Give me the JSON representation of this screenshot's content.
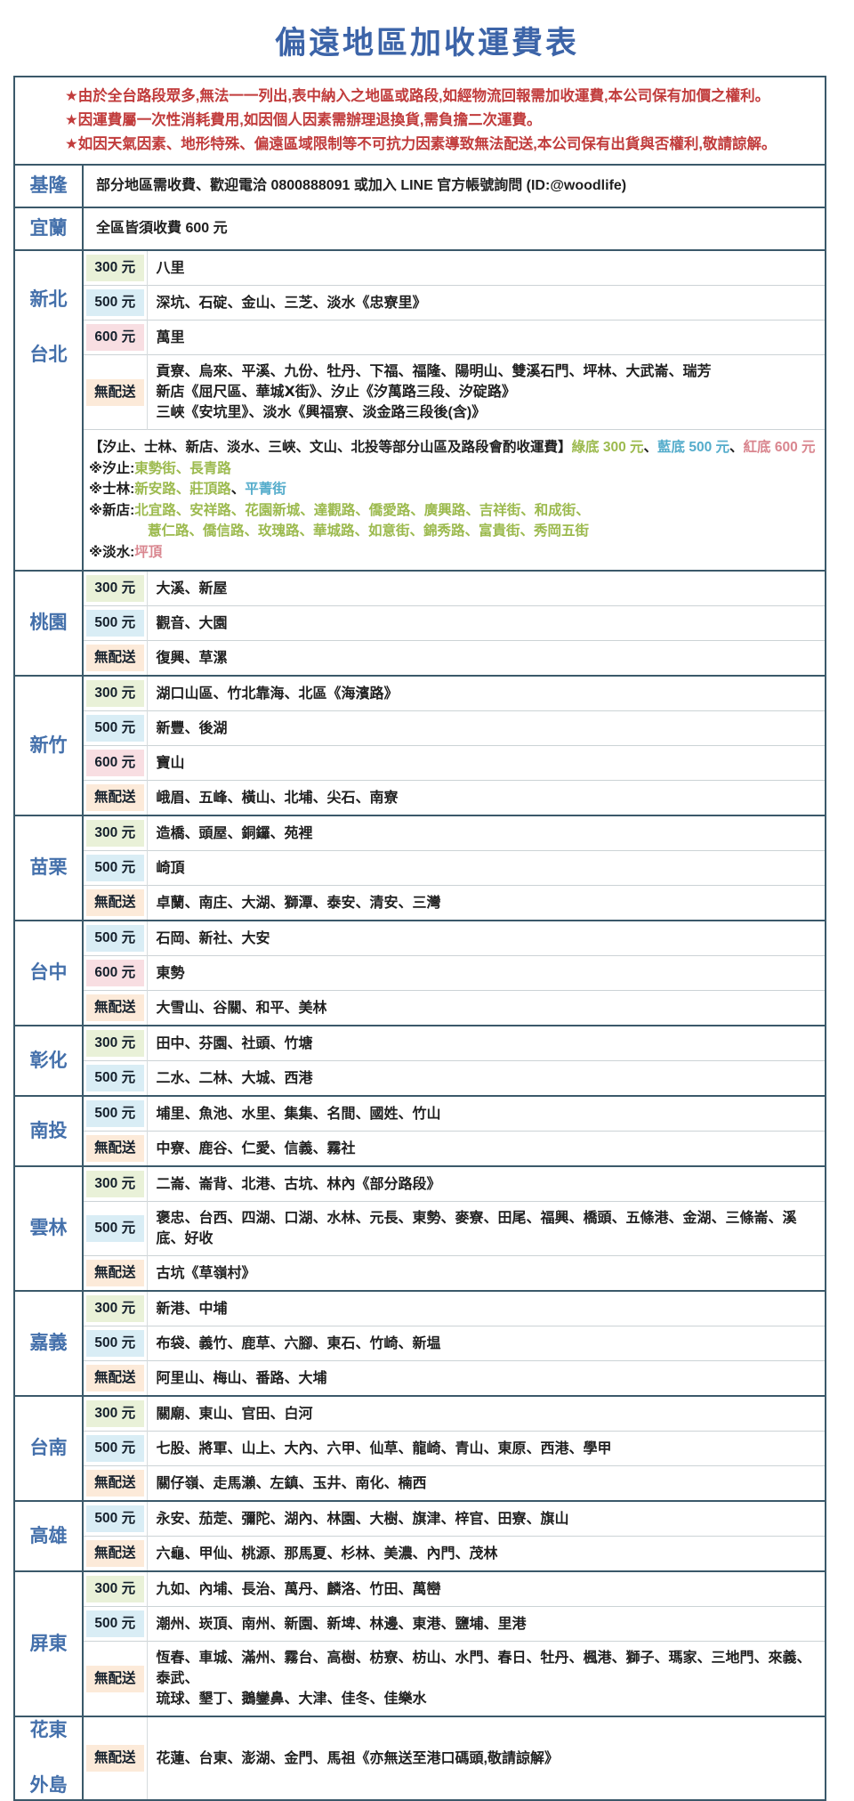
{
  "title": "偏遠地區加收運費表",
  "notes": [
    "★由於全台路段眾多,無法一一列出,表中納入之地區或路段,如經物流回報需加收運費,本公司保有加價之權利。",
    "★因運費屬一次性消耗費用,如因個人因素需辦理退換貨,需負擔二次運費。",
    "★如因天氣因素、地形特殊、偏遠區域限制等不可抗力因素導致無法配送,本公司保有出貨與否權利,敬請諒解。"
  ],
  "colors": {
    "title_blue": "#3c64a8",
    "region_blue": "#4470ab",
    "note_red": "#c13c3c",
    "table_border": "#3b596a",
    "tiers": {
      "300": "#e9f1d8",
      "500": "#d9edf5",
      "600": "#f8dee2",
      "none": "#fcead9"
    },
    "text": {
      "dark": "#1f1f1f",
      "green": "#9cba4e",
      "blue": "#54accb",
      "red": "#d9868f"
    }
  },
  "sections": [
    {
      "region": [
        "基隆"
      ],
      "rows": [
        {
          "type": "full",
          "text": "部分地區需收費、歡迎電洽 0800888091 或加入 LINE 官方帳號詢問 (ID:@woodlife)"
        }
      ]
    },
    {
      "region": [
        "宜蘭"
      ],
      "rows": [
        {
          "type": "full",
          "text": "全區皆須收費 600 元"
        }
      ]
    },
    {
      "region": [
        "新北",
        "台北"
      ],
      "rows": [
        {
          "type": "fee",
          "tier": "300",
          "fee": "300 元",
          "lines": [
            "八里"
          ]
        },
        {
          "type": "fee",
          "tier": "500",
          "fee": "500 元",
          "lines": [
            "深坑、石碇、金山、三芝、淡水《忠寮里》"
          ]
        },
        {
          "type": "fee",
          "tier": "600",
          "fee": "600 元",
          "lines": [
            "萬里"
          ]
        },
        {
          "type": "fee",
          "tier": "none",
          "fee": "無配送",
          "lines": [
            "貢寮、烏來、平溪、九份、牡丹、下福、福隆、陽明山、雙溪石門、坪林、大武崙、瑞芳",
            "新店《屈尺區、華城Ⅹ街》、汐止《汐萬路三段、汐碇路》",
            "三峽《安坑里》、淡水《興福寮、淡金路三段後(含)》"
          ]
        },
        {
          "type": "note",
          "lines": [
            {
              "indent": false,
              "parts": [
                {
                  "c": "dark",
                  "t": "【汐止、士林、新店、淡水、三峽、文山、北投等部分山區及路段會酌收運費】"
                },
                {
                  "c": "green",
                  "t": "綠底 300 元"
                },
                {
                  "c": "dark",
                  "t": "、"
                },
                {
                  "c": "blue",
                  "t": "藍底 500 元"
                },
                {
                  "c": "dark",
                  "t": "、"
                },
                {
                  "c": "red",
                  "t": "紅底 600 元"
                }
              ]
            },
            {
              "indent": false,
              "parts": [
                {
                  "c": "dark",
                  "t": "※汐止:"
                },
                {
                  "c": "green",
                  "t": "東勢街、長青路"
                }
              ]
            },
            {
              "indent": false,
              "parts": [
                {
                  "c": "dark",
                  "t": "※士林:"
                },
                {
                  "c": "green",
                  "t": "新安路、莊頂路"
                },
                {
                  "c": "dark",
                  "t": "、"
                },
                {
                  "c": "blue",
                  "t": "平菁街"
                }
              ]
            },
            {
              "indent": false,
              "parts": [
                {
                  "c": "dark",
                  "t": "※新店:"
                },
                {
                  "c": "green",
                  "t": "北宜路、安祥路、花園新城、達觀路、僑愛路、廣興路、吉祥街、和成街、"
                }
              ]
            },
            {
              "indent": true,
              "parts": [
                {
                  "c": "green",
                  "t": "薏仁路、僑信路、玫瑰路、華城路、如意街、錦秀路、富貴街、秀岡五街"
                }
              ]
            },
            {
              "indent": false,
              "parts": [
                {
                  "c": "dark",
                  "t": "※淡水:"
                },
                {
                  "c": "red",
                  "t": "坪頂"
                }
              ]
            }
          ]
        }
      ]
    },
    {
      "region": [
        "桃園"
      ],
      "rows": [
        {
          "type": "fee",
          "tier": "300",
          "fee": "300 元",
          "lines": [
            "大溪、新屋"
          ]
        },
        {
          "type": "fee",
          "tier": "500",
          "fee": "500 元",
          "lines": [
            "觀音、大園"
          ]
        },
        {
          "type": "fee",
          "tier": "none",
          "fee": "無配送",
          "lines": [
            "復興、草漯"
          ]
        }
      ]
    },
    {
      "region": [
        "新竹"
      ],
      "rows": [
        {
          "type": "fee",
          "tier": "300",
          "fee": "300 元",
          "lines": [
            "湖口山區、竹北靠海、北區《海濱路》"
          ]
        },
        {
          "type": "fee",
          "tier": "500",
          "fee": "500 元",
          "lines": [
            "新豐、後湖"
          ]
        },
        {
          "type": "fee",
          "tier": "600",
          "fee": "600 元",
          "lines": [
            "寶山"
          ]
        },
        {
          "type": "fee",
          "tier": "none",
          "fee": "無配送",
          "lines": [
            "峨眉、五峰、橫山、北埔、尖石、南寮"
          ]
        }
      ]
    },
    {
      "region": [
        "苗栗"
      ],
      "rows": [
        {
          "type": "fee",
          "tier": "300",
          "fee": "300 元",
          "lines": [
            "造橋、頭屋、銅鑼、苑裡"
          ]
        },
        {
          "type": "fee",
          "tier": "500",
          "fee": "500 元",
          "lines": [
            "崎頂"
          ]
        },
        {
          "type": "fee",
          "tier": "none",
          "fee": "無配送",
          "lines": [
            "卓蘭、南庄、大湖、獅潭、泰安、清安、三灣"
          ]
        }
      ]
    },
    {
      "region": [
        "台中"
      ],
      "rows": [
        {
          "type": "fee",
          "tier": "500",
          "fee": "500 元",
          "lines": [
            "石岡、新社、大安"
          ]
        },
        {
          "type": "fee",
          "tier": "600",
          "fee": "600 元",
          "lines": [
            "東勢"
          ]
        },
        {
          "type": "fee",
          "tier": "none",
          "fee": "無配送",
          "lines": [
            "大雪山、谷關、和平、美林"
          ]
        }
      ]
    },
    {
      "region": [
        "彰化"
      ],
      "rows": [
        {
          "type": "fee",
          "tier": "300",
          "fee": "300 元",
          "lines": [
            "田中、芬園、社頭、竹塘"
          ]
        },
        {
          "type": "fee",
          "tier": "500",
          "fee": "500 元",
          "lines": [
            "二水、二林、大城、西港"
          ]
        }
      ]
    },
    {
      "region": [
        "南投"
      ],
      "rows": [
        {
          "type": "fee",
          "tier": "500",
          "fee": "500 元",
          "lines": [
            "埔里、魚池、水里、集集、名間、國姓、竹山"
          ]
        },
        {
          "type": "fee",
          "tier": "none",
          "fee": "無配送",
          "lines": [
            "中寮、鹿谷、仁愛、信義、霧社"
          ]
        }
      ]
    },
    {
      "region": [
        "雲林"
      ],
      "rows": [
        {
          "type": "fee",
          "tier": "300",
          "fee": "300 元",
          "lines": [
            "二崙、崙背、北港、古坑、林內《部分路段》"
          ]
        },
        {
          "type": "fee",
          "tier": "500",
          "fee": "500 元",
          "lines": [
            "褒忠、台西、四湖、口湖、水林、元長、東勢、麥寮、田尾、福興、橋頭、五條港、金湖、三條崙、溪底、好收"
          ]
        },
        {
          "type": "fee",
          "tier": "none",
          "fee": "無配送",
          "lines": [
            "古坑《草嶺村》"
          ]
        }
      ]
    },
    {
      "region": [
        "嘉義"
      ],
      "rows": [
        {
          "type": "fee",
          "tier": "300",
          "fee": "300 元",
          "lines": [
            "新港、中埔"
          ]
        },
        {
          "type": "fee",
          "tier": "500",
          "fee": "500 元",
          "lines": [
            "布袋、義竹、鹿草、六腳、東石、竹崎、新塭"
          ]
        },
        {
          "type": "fee",
          "tier": "none",
          "fee": "無配送",
          "lines": [
            "阿里山、梅山、番路、大埔"
          ]
        }
      ]
    },
    {
      "region": [
        "台南"
      ],
      "rows": [
        {
          "type": "fee",
          "tier": "300",
          "fee": "300 元",
          "lines": [
            "關廟、東山、官田、白河"
          ]
        },
        {
          "type": "fee",
          "tier": "500",
          "fee": "500 元",
          "lines": [
            "七股、將軍、山上、大內、六甲、仙草、龍崎、青山、東原、西港、學甲"
          ]
        },
        {
          "type": "fee",
          "tier": "none",
          "fee": "無配送",
          "lines": [
            "關仔嶺、走馬瀨、左鎮、玉井、南化、楠西"
          ]
        }
      ]
    },
    {
      "region": [
        "高雄"
      ],
      "rows": [
        {
          "type": "fee",
          "tier": "500",
          "fee": "500 元",
          "lines": [
            "永安、茄萣、彌陀、湖內、林園、大樹、旗津、梓官、田寮、旗山"
          ]
        },
        {
          "type": "fee",
          "tier": "none",
          "fee": "無配送",
          "lines": [
            "六龜、甲仙、桃源、那馬夏、杉林、美濃、內門、茂林"
          ]
        }
      ]
    },
    {
      "region": [
        "屏東"
      ],
      "rows": [
        {
          "type": "fee",
          "tier": "300",
          "fee": "300 元",
          "lines": [
            "九如、內埔、長治、萬丹、麟洛、竹田、萬巒"
          ]
        },
        {
          "type": "fee",
          "tier": "500",
          "fee": "500 元",
          "lines": [
            "潮州、崁頂、南州、新園、新埤、林邊、東港、鹽埔、里港"
          ]
        },
        {
          "type": "fee",
          "tier": "none",
          "fee": "無配送",
          "lines": [
            "恆春、車城、滿州、霧台、高樹、枋寮、枋山、水門、春日、牡丹、楓港、獅子、瑪家、三地門、來義、泰武、",
            "琉球、墾丁、鵝鑾鼻、大津、佳冬、佳樂水"
          ]
        }
      ]
    },
    {
      "region": [
        "花東",
        "外島"
      ],
      "rows": [
        {
          "type": "fee",
          "tier": "none",
          "fee": "無配送",
          "lines": [
            "花蓮、台東、澎湖、金門、馬祖《亦無送至港口碼頭,敬請諒解》"
          ]
        }
      ]
    }
  ]
}
